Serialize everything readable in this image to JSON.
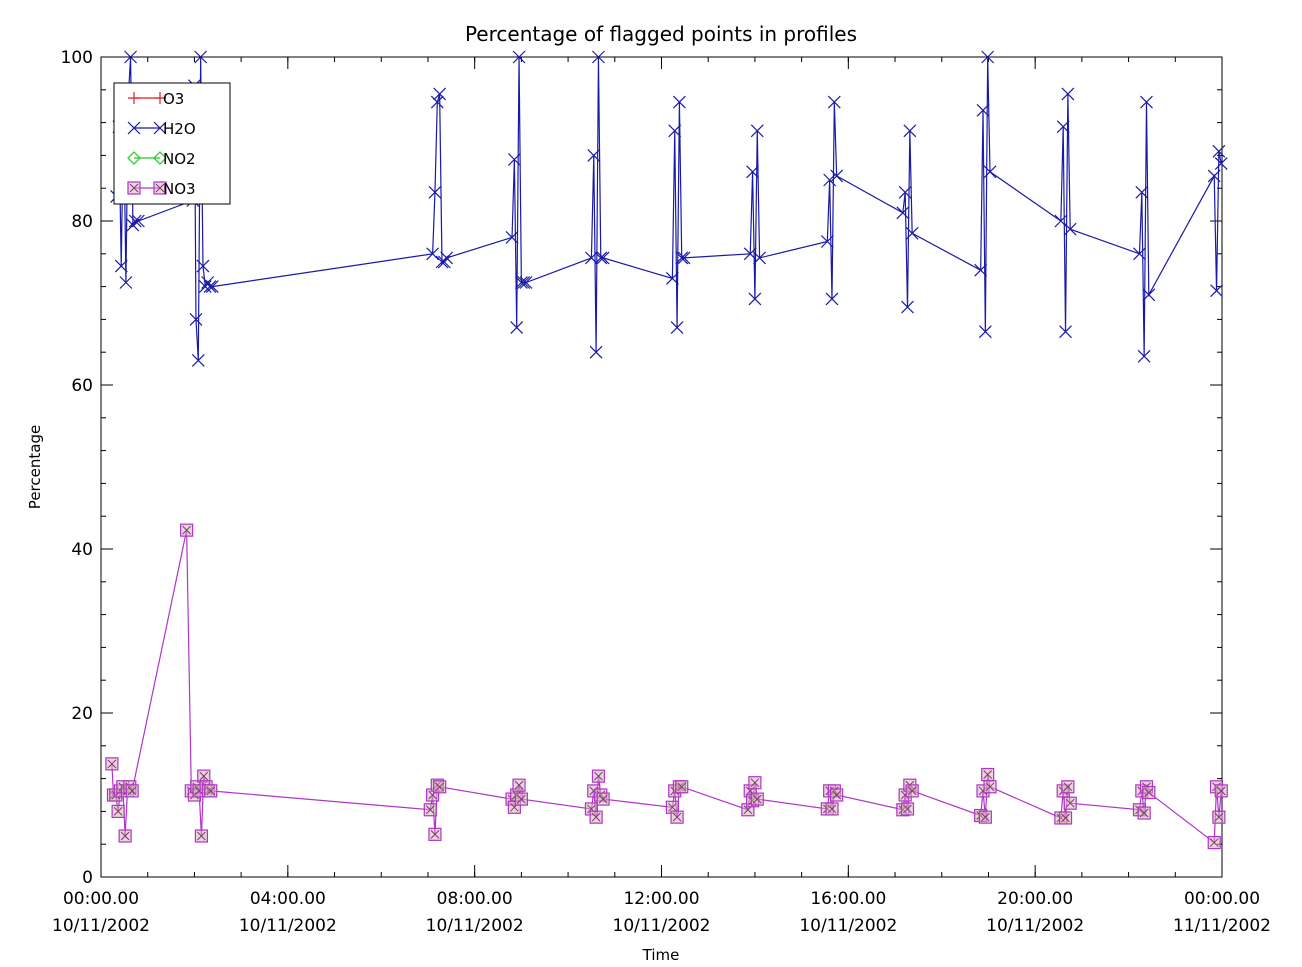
{
  "chart_data": {
    "type": "line",
    "title": "Percentage of flagged points in profiles",
    "xlabel": "Time",
    "ylabel": "Percentage",
    "xlim": [
      "2002-11-10 00:00",
      "2002-11-11 00:00"
    ],
    "ylim": [
      0,
      100
    ],
    "yticks": [
      0,
      20,
      40,
      60,
      80,
      100
    ],
    "xtick_labels": [
      {
        "time": "00:00.00",
        "date": "10/11/2002"
      },
      {
        "time": "04:00.00",
        "date": "10/11/2002"
      },
      {
        "time": "08:00.00",
        "date": "10/11/2002"
      },
      {
        "time": "12:00.00",
        "date": "10/11/2002"
      },
      {
        "time": "16:00.00",
        "date": "10/11/2002"
      },
      {
        "time": "20:00.00",
        "date": "10/11/2002"
      },
      {
        "time": "00:00.00",
        "date": "11/11/2002"
      }
    ],
    "legend_position": "top-left",
    "grid": false,
    "series": [
      {
        "name": "O3",
        "color": "#dd2222",
        "marker": "plus",
        "x": [],
        "y": []
      },
      {
        "name": "H2O",
        "color": "#1a1aa8",
        "marker": "x",
        "x": [
          "2002-11-10 00:20",
          "2002-11-10 00:23",
          "2002-11-10 00:26",
          "2002-11-10 00:29",
          "2002-11-10 00:32",
          "2002-11-10 00:35",
          "2002-11-10 00:38",
          "2002-11-10 00:41",
          "2002-11-10 00:44",
          "2002-11-10 00:48",
          "2002-11-10 01:58",
          "2002-11-10 02:00",
          "2002-11-10 02:02",
          "2002-11-10 02:05",
          "2002-11-10 02:08",
          "2002-11-10 02:11",
          "2002-11-10 02:14",
          "2002-11-10 02:17",
          "2002-11-10 02:20",
          "2002-11-10 02:23",
          "2002-11-10 07:06",
          "2002-11-10 07:09",
          "2002-11-10 07:12",
          "2002-11-10 07:15",
          "2002-11-10 07:18",
          "2002-11-10 07:21",
          "2002-11-10 07:24",
          "2002-11-10 08:48",
          "2002-11-10 08:51",
          "2002-11-10 08:54",
          "2002-11-10 08:57",
          "2002-11-10 09:00",
          "2002-11-10 09:03",
          "2002-11-10 09:06",
          "2002-11-10 10:30",
          "2002-11-10 10:33",
          "2002-11-10 10:36",
          "2002-11-10 10:39",
          "2002-11-10 10:42",
          "2002-11-10 10:45",
          "2002-11-10 12:14",
          "2002-11-10 12:17",
          "2002-11-10 12:20",
          "2002-11-10 12:23",
          "2002-11-10 12:26",
          "2002-11-10 12:29",
          "2002-11-10 13:54",
          "2002-11-10 13:57",
          "2002-11-10 14:00",
          "2002-11-10 14:03",
          "2002-11-10 14:06",
          "2002-11-10 15:33",
          "2002-11-10 15:36",
          "2002-11-10 15:39",
          "2002-11-10 15:42",
          "2002-11-10 15:45",
          "2002-11-10 17:10",
          "2002-11-10 17:13",
          "2002-11-10 17:16",
          "2002-11-10 17:19",
          "2002-11-10 17:22",
          "2002-11-10 18:50",
          "2002-11-10 18:53",
          "2002-11-10 18:56",
          "2002-11-10 18:59",
          "2002-11-10 19:02",
          "2002-11-10 20:33",
          "2002-11-10 20:36",
          "2002-11-10 20:39",
          "2002-11-10 20:42",
          "2002-11-10 20:45",
          "2002-11-10 22:14",
          "2002-11-10 22:17",
          "2002-11-10 22:20",
          "2002-11-10 22:23",
          "2002-11-10 22:26",
          "2002-11-10 23:50",
          "2002-11-10 23:53",
          "2002-11-10 23:56",
          "2002-11-10 23:59"
        ],
        "y": [
          83,
          91.5,
          74.5,
          94,
          72.5,
          95,
          100,
          79.5,
          80,
          80,
          82.5,
          96.5,
          68,
          63,
          100,
          74.5,
          72,
          72.5,
          72,
          72,
          76,
          83.5,
          94.5,
          95.5,
          75,
          75,
          75.5,
          78,
          87.5,
          67,
          100,
          72.5,
          72.5,
          72.5,
          75.5,
          88,
          64,
          100,
          75.5,
          75.5,
          73,
          91,
          67,
          94.5,
          75.5,
          75.5,
          76,
          86,
          70.5,
          91,
          75.5,
          77.5,
          85,
          70.5,
          94.5,
          85.5,
          81,
          83.5,
          69.5,
          91,
          78.5,
          74,
          93.5,
          66.5,
          100,
          86,
          80,
          91.5,
          66.5,
          95.5,
          79,
          76,
          83.5,
          63.5,
          94.5,
          71,
          85.5,
          71.5,
          88.5,
          87
        ]
      },
      {
        "name": "NO2",
        "color": "#22cc22",
        "marker": "diamond",
        "x": [],
        "y": []
      },
      {
        "name": "NO3",
        "color": "#b034c8",
        "marker": "square",
        "x": [
          "2002-11-10 00:14",
          "2002-11-10 00:16",
          "2002-11-10 00:19",
          "2002-11-10 00:22",
          "2002-11-10 00:25",
          "2002-11-10 00:28",
          "2002-11-10 00:31",
          "2002-11-10 00:34",
          "2002-11-10 00:37",
          "2002-11-10 00:40",
          "2002-11-10 01:50",
          "2002-11-10 01:56",
          "2002-11-10 02:00",
          "2002-11-10 02:03",
          "2002-11-10 02:06",
          "2002-11-10 02:09",
          "2002-11-10 02:12",
          "2002-11-10 02:15",
          "2002-11-10 02:18",
          "2002-11-10 02:21",
          "2002-11-10 07:03",
          "2002-11-10 07:06",
          "2002-11-10 07:09",
          "2002-11-10 07:12",
          "2002-11-10 07:15",
          "2002-11-10 08:48",
          "2002-11-10 08:51",
          "2002-11-10 08:54",
          "2002-11-10 08:57",
          "2002-11-10 09:00",
          "2002-11-10 10:30",
          "2002-11-10 10:33",
          "2002-11-10 10:36",
          "2002-11-10 10:39",
          "2002-11-10 10:42",
          "2002-11-10 10:45",
          "2002-11-10 12:14",
          "2002-11-10 12:17",
          "2002-11-10 12:20",
          "2002-11-10 12:23",
          "2002-11-10 12:26",
          "2002-11-10 13:51",
          "2002-11-10 13:54",
          "2002-11-10 13:57",
          "2002-11-10 14:00",
          "2002-11-10 14:03",
          "2002-11-10 15:33",
          "2002-11-10 15:36",
          "2002-11-10 15:39",
          "2002-11-10 15:42",
          "2002-11-10 15:45",
          "2002-11-10 17:10",
          "2002-11-10 17:13",
          "2002-11-10 17:16",
          "2002-11-10 17:19",
          "2002-11-10 17:22",
          "2002-11-10 18:50",
          "2002-11-10 18:53",
          "2002-11-10 18:56",
          "2002-11-10 18:59",
          "2002-11-10 19:02",
          "2002-11-10 20:33",
          "2002-11-10 20:36",
          "2002-11-10 20:39",
          "2002-11-10 20:42",
          "2002-11-10 20:45",
          "2002-11-10 22:14",
          "2002-11-10 22:17",
          "2002-11-10 22:20",
          "2002-11-10 22:23",
          "2002-11-10 22:26",
          "2002-11-10 23:50",
          "2002-11-10 23:53",
          "2002-11-10 23:56",
          "2002-11-10 23:59"
        ],
        "y": [
          13.8,
          10,
          10,
          8,
          10.5,
          11,
          5,
          10.5,
          11,
          10.5,
          42.3,
          10.5,
          10,
          11,
          10.5,
          5,
          12.3,
          11,
          10.5,
          10.5,
          8.2,
          10,
          5.2,
          11.2,
          11,
          9.5,
          8.5,
          10,
          11.2,
          9.5,
          8.3,
          10.5,
          7.3,
          12.3,
          10,
          9.5,
          8.5,
          10.5,
          7.3,
          11,
          11,
          8.2,
          10.5,
          9.3,
          11.5,
          9.5,
          8.3,
          10.5,
          8.3,
          10.5,
          10,
          8.2,
          10,
          8.3,
          11.2,
          10.5,
          7.5,
          10.5,
          7.3,
          12.5,
          11,
          7.2,
          10.5,
          7.2,
          11,
          9,
          8.2,
          10.5,
          7.8,
          11,
          10.3,
          4.2,
          11,
          7.3,
          10.5
        ]
      }
    ]
  }
}
